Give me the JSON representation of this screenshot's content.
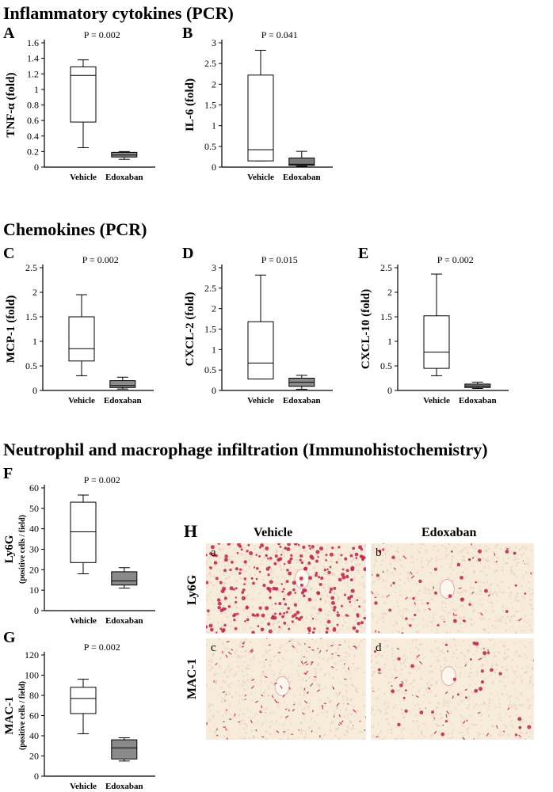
{
  "sections": {
    "cytokines": "Inflammatory cytokines (PCR)",
    "chemokines": "Chemokines (PCR)",
    "infiltration": "Neutrophil and macrophage infiltration (Immunohistochemistry)"
  },
  "chart_data": [
    {
      "type": "box",
      "panel": "A",
      "ylabel": "TNF-α (fold)",
      "ylabel_sub": "",
      "p_value": "P = 0.002",
      "categories": [
        "Vehicle",
        "Edoxaban"
      ],
      "ylim": [
        0,
        1.6
      ],
      "yticks": [
        "0",
        "0.2",
        "0.4",
        "0.6",
        "0.8",
        "1",
        "1.2",
        "1.4",
        "1.6"
      ],
      "boxes": [
        {
          "name": "Vehicle",
          "min": 0.25,
          "q1": 0.58,
          "median": 1.18,
          "q3": 1.29,
          "max": 1.38,
          "fill": "#ffffff"
        },
        {
          "name": "Edoxaban",
          "min": 0.1,
          "q1": 0.13,
          "median": 0.155,
          "q3": 0.19,
          "max": 0.2,
          "fill": "#8a8a8a"
        }
      ]
    },
    {
      "type": "box",
      "panel": "B",
      "ylabel": "IL-6 (fold)",
      "ylabel_sub": "",
      "p_value": "P = 0.041",
      "categories": [
        "Vehicle",
        "Edoxaban"
      ],
      "ylim": [
        0,
        3
      ],
      "yticks": [
        "0",
        "0.5",
        "1",
        "1.5",
        "2",
        "2.5",
        "3"
      ],
      "boxes": [
        {
          "name": "Vehicle",
          "min": 0.15,
          "q1": 0.15,
          "median": 0.42,
          "q3": 2.22,
          "max": 2.82,
          "fill": "#ffffff"
        },
        {
          "name": "Edoxaban",
          "min": 0.02,
          "q1": 0.04,
          "median": 0.07,
          "q3": 0.22,
          "max": 0.38,
          "fill": "#7a7a7a"
        }
      ]
    },
    {
      "type": "box",
      "panel": "C",
      "ylabel": "MCP-1 (fold)",
      "ylabel_sub": "",
      "p_value": "P = 0.002",
      "categories": [
        "Vehicle",
        "Edoxaban"
      ],
      "ylim": [
        0,
        2.5
      ],
      "yticks": [
        "0",
        "0.5",
        "1",
        "1.5",
        "2",
        "2.5"
      ],
      "boxes": [
        {
          "name": "Vehicle",
          "min": 0.3,
          "q1": 0.6,
          "median": 0.85,
          "q3": 1.5,
          "max": 1.95,
          "fill": "#ffffff"
        },
        {
          "name": "Edoxaban",
          "min": 0.03,
          "q1": 0.06,
          "median": 0.1,
          "q3": 0.2,
          "max": 0.27,
          "fill": "#8a8a8a"
        }
      ]
    },
    {
      "type": "box",
      "panel": "D",
      "ylabel": "CXCL-2 (fold)",
      "ylabel_sub": "",
      "p_value": "P = 0.015",
      "categories": [
        "Vehicle",
        "Edoxaban"
      ],
      "ylim": [
        0,
        3
      ],
      "yticks": [
        "0",
        "0.5",
        "1",
        "1.5",
        "2",
        "2.5",
        "3"
      ],
      "boxes": [
        {
          "name": "Vehicle",
          "min": 0.28,
          "q1": 0.28,
          "median": 0.67,
          "q3": 1.68,
          "max": 2.82,
          "fill": "#ffffff"
        },
        {
          "name": "Edoxaban",
          "min": 0.03,
          "q1": 0.1,
          "median": 0.2,
          "q3": 0.3,
          "max": 0.37,
          "fill": "#8a8a8a"
        }
      ]
    },
    {
      "type": "box",
      "panel": "E",
      "ylabel": "CXCL-10 (fold)",
      "ylabel_sub": "",
      "p_value": "P = 0.002",
      "categories": [
        "Vehicle",
        "Edoxaban"
      ],
      "ylim": [
        0,
        2.5
      ],
      "yticks": [
        "0",
        "0.5",
        "1",
        "1.5",
        "2",
        "2.5"
      ],
      "boxes": [
        {
          "name": "Vehicle",
          "min": 0.3,
          "q1": 0.45,
          "median": 0.78,
          "q3": 1.52,
          "max": 2.37,
          "fill": "#ffffff"
        },
        {
          "name": "Edoxaban",
          "min": 0.04,
          "q1": 0.06,
          "median": 0.09,
          "q3": 0.13,
          "max": 0.17,
          "fill": "#8a8a8a"
        }
      ]
    },
    {
      "type": "box",
      "panel": "F",
      "ylabel": "Ly6G",
      "ylabel_sub": "(positive cells / field)",
      "p_value": "P = 0.002",
      "categories": [
        "Vehicle",
        "Edoxaban"
      ],
      "ylim": [
        0,
        60
      ],
      "yticks": [
        "0",
        "10",
        "20",
        "30",
        "40",
        "50",
        "60"
      ],
      "boxes": [
        {
          "name": "Vehicle",
          "min": 18,
          "q1": 23.5,
          "median": 38.5,
          "q3": 53,
          "max": 56.5,
          "fill": "#ffffff"
        },
        {
          "name": "Edoxaban",
          "min": 11,
          "q1": 12.5,
          "median": 14.5,
          "q3": 19,
          "max": 21,
          "fill": "#8a8a8a"
        }
      ]
    },
    {
      "type": "box",
      "panel": "G",
      "ylabel": "MAC-1",
      "ylabel_sub": "(positive cells / field)",
      "p_value": "P = 0.002",
      "categories": [
        "Vehicle",
        "Edoxaban"
      ],
      "ylim": [
        0,
        120
      ],
      "yticks": [
        "0",
        "20",
        "40",
        "60",
        "80",
        "100",
        "120"
      ],
      "boxes": [
        {
          "name": "Vehicle",
          "min": 42,
          "q1": 62,
          "median": 77,
          "q3": 88,
          "max": 96,
          "fill": "#ffffff"
        },
        {
          "name": "Edoxaban",
          "min": 15,
          "q1": 17,
          "median": 28,
          "q3": 36,
          "max": 38,
          "fill": "#8a8a8a"
        }
      ]
    }
  ],
  "micrographs": {
    "letter": "H",
    "columns": [
      "Vehicle",
      "Edoxaban"
    ],
    "rows": [
      "Ly6G",
      "MAC-1"
    ],
    "tiles": [
      {
        "label": "a",
        "density": "high"
      },
      {
        "label": "b",
        "density": "low"
      },
      {
        "label": "c",
        "density": "medium"
      },
      {
        "label": "d",
        "density": "low"
      }
    ],
    "stain_color": "#c0204a",
    "background_color": "#f6ecd9"
  }
}
